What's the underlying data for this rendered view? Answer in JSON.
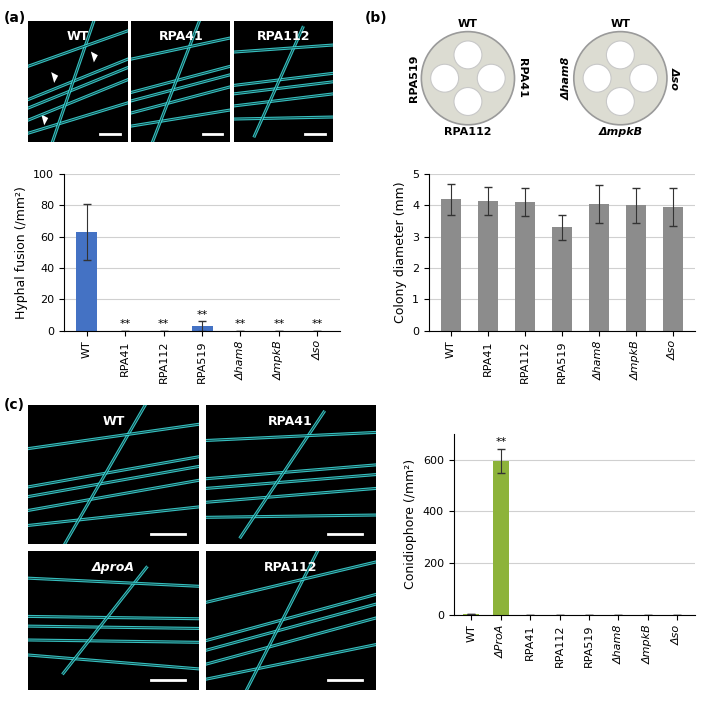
{
  "chart_data": [
    {
      "type": "bar",
      "ylabel": "Hyphal fusion (/mm²)",
      "categories": [
        "WT",
        "RPA41",
        "RPA112",
        "RPA519",
        "Δham8",
        "ΔmpkB",
        "Δso"
      ],
      "values": [
        63,
        0,
        0,
        3,
        0,
        0,
        0
      ],
      "errors": [
        18,
        0,
        0,
        3,
        0,
        0,
        0
      ],
      "significance": [
        null,
        "**",
        "**",
        "**",
        "**",
        "**",
        "**"
      ],
      "color": "#4472c4",
      "ylim": [
        0,
        100
      ],
      "yticks": [
        0,
        20,
        40,
        60,
        80,
        100
      ],
      "grid": true
    },
    {
      "type": "bar",
      "ylabel": "Colony diameter (mm)",
      "categories": [
        "WT",
        "RPA41",
        "RPA112",
        "RPA519",
        "Δham8",
        "ΔmpkB",
        "Δso"
      ],
      "values": [
        4.2,
        4.15,
        4.1,
        3.3,
        4.05,
        4.0,
        3.95
      ],
      "errors": [
        0.5,
        0.45,
        0.45,
        0.4,
        0.6,
        0.55,
        0.6
      ],
      "color": "#8c8c8c",
      "ylim": [
        0,
        5
      ],
      "yticks": [
        0,
        1,
        2,
        3,
        4,
        5
      ],
      "grid": true
    },
    {
      "type": "bar",
      "ylabel": "Conidiophore (/mm²)",
      "categories": [
        "WT",
        "ΔProA",
        "RPA41",
        "RPA112",
        "RPA519",
        "Δham8",
        "ΔmpkB",
        "Δso"
      ],
      "values": [
        2,
        595,
        0,
        1,
        1,
        0,
        1,
        1
      ],
      "errors": [
        0,
        45,
        0,
        0,
        0,
        0,
        0,
        0
      ],
      "significance": [
        null,
        "**",
        null,
        null,
        null,
        null,
        null,
        null
      ],
      "color": "#8db33a",
      "ylim": [
        0,
        700
      ],
      "yticks": [
        0,
        200,
        400,
        600
      ],
      "grid": true
    }
  ],
  "panels": [
    {
      "label": "(a)",
      "images": [
        "WT",
        "RPA41",
        "RPA112"
      ]
    },
    {
      "label": "(b)",
      "plates": [
        {
          "top": "WT",
          "left": "RPA519",
          "right": "RPA41",
          "bottom": "RPA112"
        },
        {
          "top": "WT",
          "left": "Δham8",
          "right": "Δso",
          "bottom": "ΔmpkB"
        }
      ]
    },
    {
      "label": "(c)",
      "images": [
        "WT",
        "RPA41",
        "ΔproA",
        "RPA112"
      ]
    }
  ]
}
